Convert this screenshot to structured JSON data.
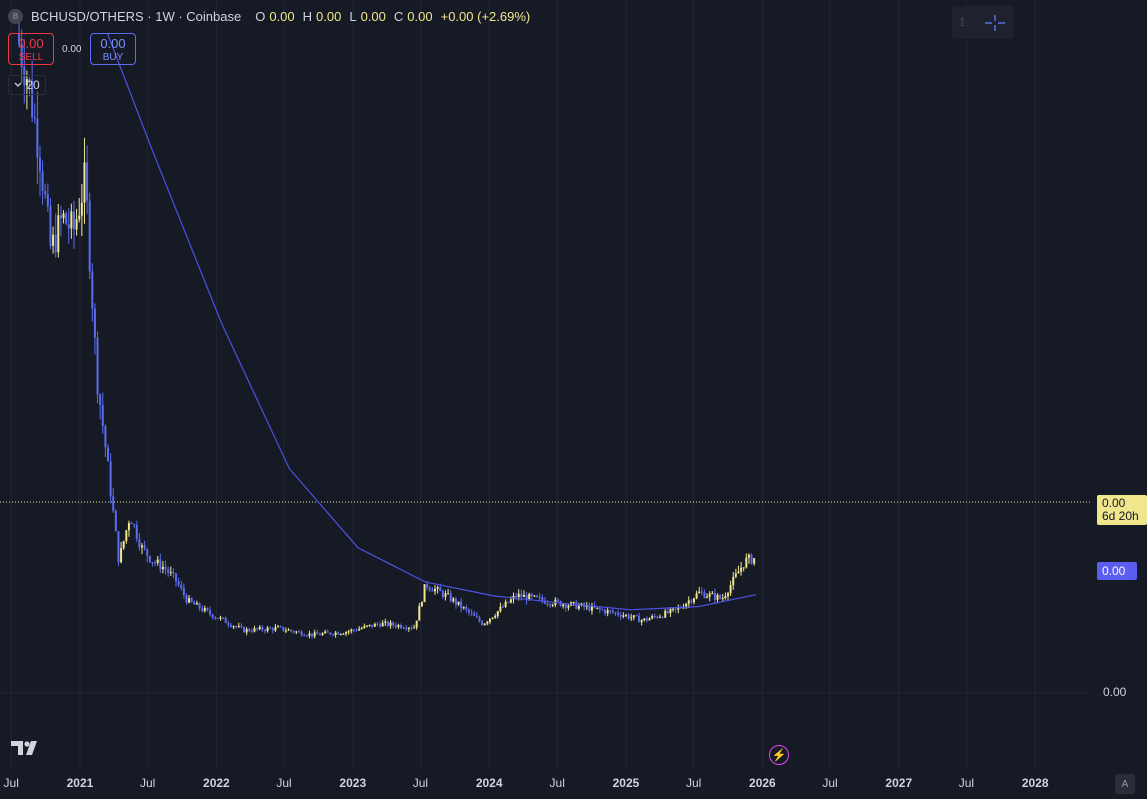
{
  "header": {
    "symbol_badge": "B",
    "title": "BCHUSD/OTHERS · 1W · Coinbase",
    "open_label": "O",
    "open_value": "0.00",
    "high_label": "H",
    "high_value": "0.00",
    "low_label": "L",
    "low_value": "0.00",
    "close_label": "C",
    "close_value": "0.00",
    "change": "+0.00 (+2.69%)"
  },
  "trade": {
    "sell_value": "0.00",
    "sell_label": "SELL",
    "spread": "0.00",
    "buy_value": "0.00",
    "buy_label": "BUY"
  },
  "volume_toggle": {
    "icon": "chevron-down-icon",
    "value": "20"
  },
  "price_axis": {
    "last_price": "0.00",
    "countdown": "6d 20h",
    "ma_value": "0.00",
    "tick": "0.00"
  },
  "time_axis": {
    "labels": [
      "Jul",
      "2021",
      "Jul",
      "2022",
      "Jul",
      "2023",
      "Jul",
      "2024",
      "Jul",
      "2025",
      "Jul",
      "2026",
      "Jul",
      "2027",
      "Jul",
      "2028"
    ],
    "year_flags": [
      false,
      true,
      false,
      true,
      false,
      true,
      false,
      true,
      false,
      true,
      false,
      true,
      false,
      true,
      false,
      true
    ]
  },
  "auto_button": "A",
  "colors": {
    "background": "#161a25",
    "candle_up": "#f0e68c",
    "candle_down": "#5b6cf0",
    "moving_average": "#4c52e6",
    "last_price_line": "#f0e68c"
  },
  "chart_data": {
    "type": "candlestick",
    "title": "BCHUSD/OTHERS · 1W · Coinbase",
    "x_label": "",
    "y_label": "",
    "x_range": [
      "2020-06",
      "2028-06"
    ],
    "y_scale": "relative (price labels display as 0.00)",
    "grid": true,
    "price_series": [
      {
        "t": "2020-07",
        "v": 100
      },
      {
        "t": "2020-08",
        "v": 93
      },
      {
        "t": "2020-09",
        "v": 82
      },
      {
        "t": "2020-10",
        "v": 67
      },
      {
        "t": "2020-11",
        "v": 72
      },
      {
        "t": "2020-12",
        "v": 70
      },
      {
        "t": "2021-01",
        "v": 78
      },
      {
        "t": "2021-02",
        "v": 48
      },
      {
        "t": "2021-03",
        "v": 35
      },
      {
        "t": "2021-04",
        "v": 20
      },
      {
        "t": "2021-05",
        "v": 27
      },
      {
        "t": "2021-06",
        "v": 22
      },
      {
        "t": "2021-07",
        "v": 20
      },
      {
        "t": "2021-08",
        "v": 19
      },
      {
        "t": "2021-09",
        "v": 17
      },
      {
        "t": "2021-10",
        "v": 14
      },
      {
        "t": "2021-12",
        "v": 12
      },
      {
        "t": "2022-03",
        "v": 9.5
      },
      {
        "t": "2022-06",
        "v": 9.8
      },
      {
        "t": "2022-09",
        "v": 8.8
      },
      {
        "t": "2022-12",
        "v": 9.3
      },
      {
        "t": "2023-03",
        "v": 10.5
      },
      {
        "t": "2023-06",
        "v": 10
      },
      {
        "t": "2023-07",
        "v": 16.5
      },
      {
        "t": "2023-09",
        "v": 14.5
      },
      {
        "t": "2023-12",
        "v": 10.5
      },
      {
        "t": "2024-03",
        "v": 14.8
      },
      {
        "t": "2024-06",
        "v": 13.8
      },
      {
        "t": "2024-09",
        "v": 13
      },
      {
        "t": "2024-12",
        "v": 12
      },
      {
        "t": "2025-02",
        "v": 11
      },
      {
        "t": "2025-05",
        "v": 12.5
      },
      {
        "t": "2025-07",
        "v": 15.2
      },
      {
        "t": "2025-09",
        "v": 14.3
      },
      {
        "t": "2025-10",
        "v": 17
      },
      {
        "t": "2025-11",
        "v": 20
      },
      {
        "t": "2025-12",
        "v": 20.5
      }
    ],
    "moving_average": [
      {
        "t": "2021-03",
        "v": 100
      },
      {
        "t": "2021-07",
        "v": 82
      },
      {
        "t": "2022-01",
        "v": 56
      },
      {
        "t": "2022-07",
        "v": 34
      },
      {
        "t": "2023-01",
        "v": 22
      },
      {
        "t": "2023-07",
        "v": 16.8
      },
      {
        "t": "2024-01",
        "v": 14.7
      },
      {
        "t": "2024-07",
        "v": 13.6
      },
      {
        "t": "2025-01",
        "v": 12.6
      },
      {
        "t": "2025-07",
        "v": 13.1
      },
      {
        "t": "2025-12",
        "v": 14.9
      }
    ]
  }
}
